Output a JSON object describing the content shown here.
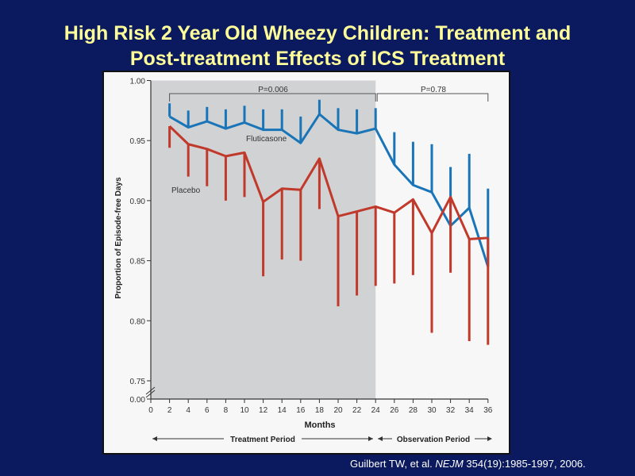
{
  "slide": {
    "title_line1": "High Risk 2 Year Old Wheezy Children: Treatment and",
    "title_line2": "Post-treatment Effects of ICS Treatment",
    "citation_authors": "Guilbert TW, et al.",
    "citation_journal": "NEJM",
    "citation_rest": " 354(19):1985-1997, 2006."
  },
  "chart_data": {
    "type": "line",
    "xlabel": "Months",
    "ylabel": "Proportion of Episode-free Days",
    "x_ticks": [
      "0",
      "2",
      "4",
      "6",
      "8",
      "10",
      "12",
      "14",
      "16",
      "18",
      "20",
      "22",
      "24",
      "26",
      "28",
      "30",
      "32",
      "34",
      "36"
    ],
    "y_ticks": [
      "0.00",
      "0.75",
      "0.80",
      "0.85",
      "0.90",
      "0.95",
      "1.00"
    ],
    "ylim": [
      0.75,
      1.0
    ],
    "y_axis_break": true,
    "x": [
      2,
      4,
      6,
      8,
      10,
      12,
      14,
      16,
      18,
      20,
      22,
      24,
      26,
      28,
      30,
      32,
      34,
      36
    ],
    "series": [
      {
        "name": "Fluticasone",
        "color": "#1a75b8",
        "values": [
          0.97,
          0.961,
          0.966,
          0.96,
          0.965,
          0.959,
          0.959,
          0.948,
          0.972,
          0.959,
          0.956,
          0.96,
          0.93,
          0.913,
          0.907,
          0.879,
          0.894,
          0.845
        ],
        "error_upper": [
          0.981,
          0.975,
          0.978,
          0.976,
          0.979,
          0.976,
          0.976,
          0.97,
          0.984,
          0.977,
          0.976,
          0.977,
          0.957,
          0.949,
          0.947,
          0.928,
          0.939,
          0.91
        ]
      },
      {
        "name": "Placebo",
        "color": "#c0392b",
        "values": [
          0.962,
          0.947,
          0.943,
          0.937,
          0.94,
          0.899,
          0.91,
          0.909,
          0.935,
          0.887,
          0.891,
          0.895,
          0.89,
          0.901,
          0.873,
          0.903,
          0.868,
          0.869
        ],
        "error_lower": [
          0.944,
          0.92,
          0.912,
          0.9,
          0.903,
          0.837,
          0.851,
          0.85,
          0.893,
          0.812,
          0.821,
          0.829,
          0.831,
          0.838,
          0.79,
          0.84,
          0.783,
          0.78
        ]
      }
    ],
    "annotations": {
      "p_treatment": "P=0.006",
      "p_observation": "P=0.78",
      "treatment_period": "Treatment Period",
      "observation_period": "Observation Period"
    },
    "shaded_region": [
      0,
      24
    ],
    "shade_color": "#d1d2d4",
    "grid": false
  }
}
